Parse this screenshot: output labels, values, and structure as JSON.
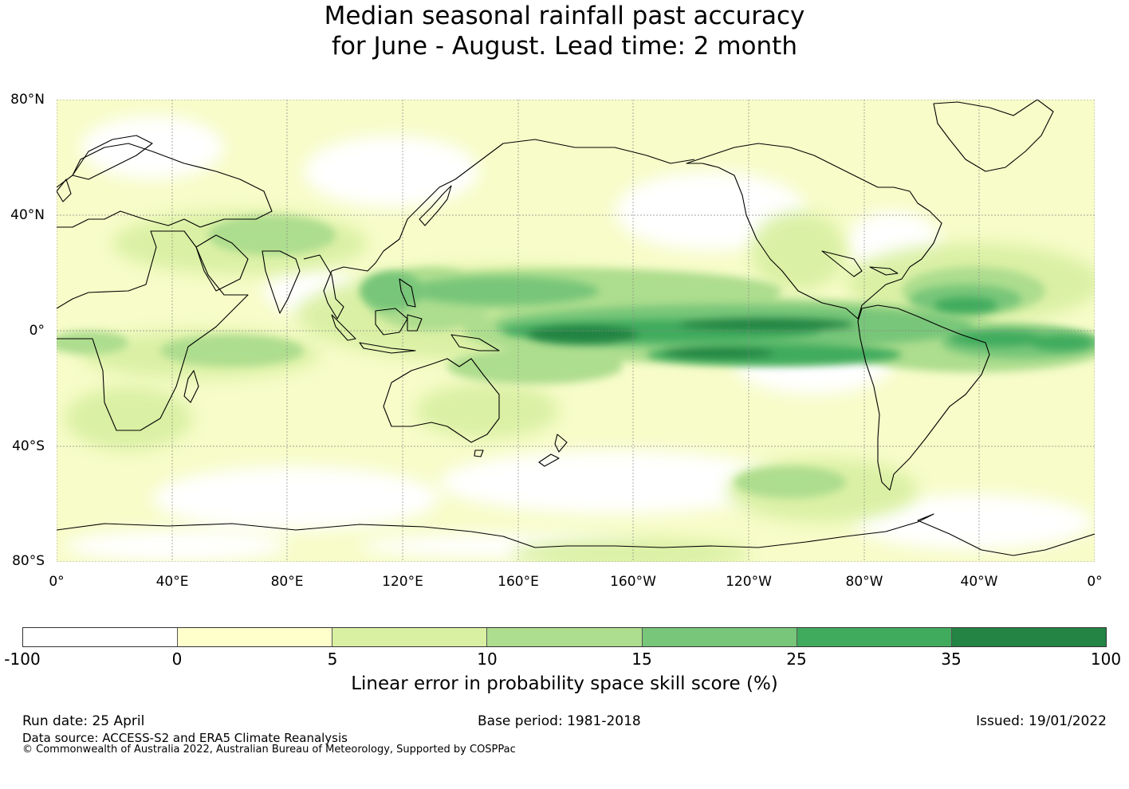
{
  "title": {
    "line1": "Median seasonal rainfall past accuracy",
    "line2": "for June - August. Lead time: 2 month"
  },
  "map": {
    "lat_labels": [
      "80°N",
      "40°N",
      "0°",
      "40°S",
      "80°S"
    ],
    "lon_labels": [
      "0°",
      "40°E",
      "80°E",
      "120°E",
      "160°E",
      "160°W",
      "120°W",
      "80°W",
      "40°W",
      "0°"
    ],
    "projection": "equirectangular, Pacific-inclusive 0° to 360°",
    "gridlines": true
  },
  "colorbar": {
    "ticks": [
      "-100",
      "0",
      "5",
      "10",
      "15",
      "25",
      "35",
      "100"
    ],
    "colors": [
      "#ffffff",
      "#ffffcc",
      "#d9f0a3",
      "#addd8e",
      "#78c679",
      "#41ab5d",
      "#238443"
    ],
    "label": "Linear error in probability space skill score (%)"
  },
  "footer": {
    "run_date": "Run date: 25 April",
    "base_period": "Base period: 1981-2018",
    "issued": "Issued: 19/01/2022",
    "data_source": "Data source: ACCESS-S2 and ERA5 Climate Reanalysis",
    "copyright": "© Commonwealth of Australia 2022, Australian Bureau of Meteorology, Supported by COSPPac"
  }
}
